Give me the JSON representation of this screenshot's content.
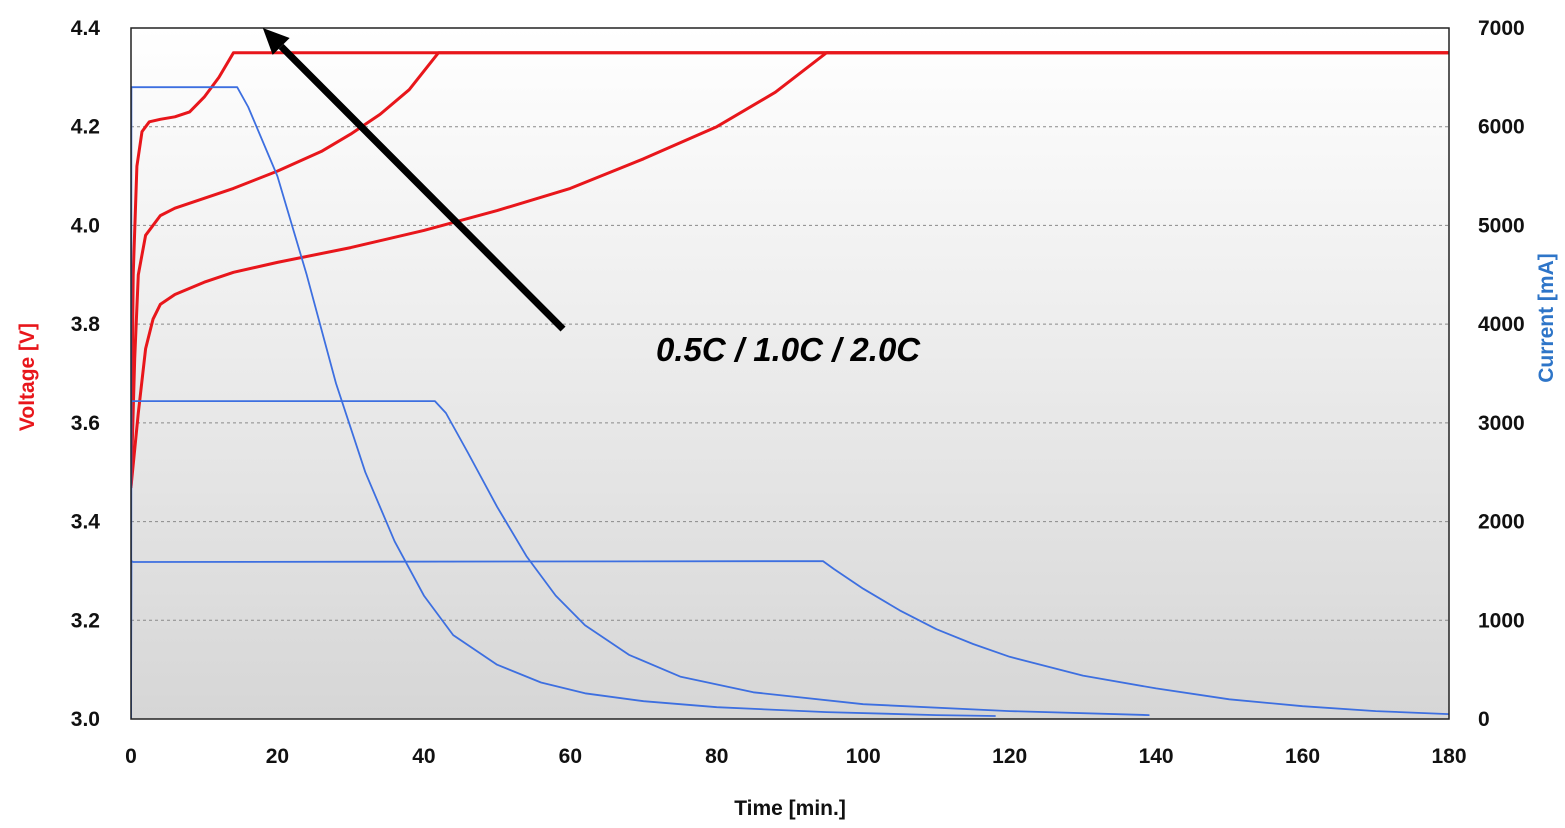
{
  "chart_data": {
    "type": "line",
    "title": "",
    "xlabel": "Time [min.]",
    "ylabel_left": "Voltage [V]",
    "ylabel_right": "Current [mA]",
    "xlim": [
      0,
      180
    ],
    "ylim_left": [
      3.0,
      4.4
    ],
    "ylim_right": [
      0,
      7000
    ],
    "x_ticks": [
      "0",
      "20",
      "40",
      "60",
      "80",
      "100",
      "120",
      "140",
      "160",
      "180"
    ],
    "y_left_ticks": [
      "3.0",
      "3.2",
      "3.4",
      "3.6",
      "3.8",
      "4.0",
      "4.2",
      "4.4"
    ],
    "y_right_ticks": [
      "0",
      "1000",
      "2000",
      "3000",
      "4000",
      "5000",
      "6000",
      "7000"
    ],
    "grid": "horizontal dashed",
    "annotation": {
      "text": "0.5C / 1.0C / 2.0C",
      "arrow_from": [
        59,
        3.79
      ],
      "arrow_to": [
        18,
        4.4
      ]
    },
    "colors": {
      "voltage": "#e8161b",
      "current": "#3d6fe0",
      "left_axis_label": "#e8161b",
      "right_axis_label": "#2e75c8"
    },
    "series": [
      {
        "axis": "left",
        "x": [
          0,
          0.3,
          0.8,
          1.5,
          2.5,
          4,
          6,
          8,
          10,
          12,
          14,
          180
        ],
        "y": [
          3.47,
          3.9,
          4.12,
          4.19,
          4.21,
          4.215,
          4.22,
          4.23,
          4.26,
          4.3,
          4.35,
          4.35
        ]
      },
      {
        "axis": "left",
        "x": [
          0,
          0.5,
          1,
          2,
          4,
          6,
          10,
          14,
          20,
          26,
          30,
          34,
          38,
          42,
          180
        ],
        "y": [
          3.47,
          3.73,
          3.9,
          3.98,
          4.02,
          4.035,
          4.055,
          4.075,
          4.11,
          4.15,
          4.185,
          4.225,
          4.275,
          4.35,
          4.35
        ]
      },
      {
        "axis": "left",
        "x": [
          0,
          1,
          2,
          3,
          4,
          6,
          10,
          14,
          20,
          30,
          40,
          50,
          60,
          70,
          80,
          88,
          95,
          180
        ],
        "y": [
          3.47,
          3.62,
          3.75,
          3.81,
          3.84,
          3.86,
          3.885,
          3.905,
          3.925,
          3.955,
          3.99,
          4.03,
          4.075,
          4.135,
          4.2,
          4.27,
          4.35,
          4.35
        ]
      },
      {
        "axis": "right",
        "x": [
          0,
          0.05,
          0.3,
          14.5,
          16,
          20,
          24,
          28,
          32,
          36,
          40,
          44,
          50,
          56,
          62,
          70,
          80,
          95,
          110,
          118
        ],
        "y": [
          0,
          6400,
          6400,
          6400,
          6200,
          5500,
          4500,
          3400,
          2500,
          1800,
          1250,
          850,
          550,
          370,
          260,
          180,
          120,
          70,
          40,
          30
        ]
      },
      {
        "axis": "right",
        "x": [
          0,
          0.05,
          0.3,
          41.5,
          43,
          46,
          50,
          54,
          58,
          62,
          68,
          75,
          85,
          100,
          120,
          139
        ],
        "y": [
          0,
          3220,
          3220,
          3220,
          3100,
          2700,
          2150,
          1650,
          1250,
          950,
          650,
          430,
          270,
          150,
          80,
          40
        ]
      },
      {
        "axis": "right",
        "x": [
          0,
          0.05,
          0.3,
          94.5,
          96,
          100,
          105,
          110,
          115,
          120,
          130,
          140,
          150,
          160,
          170,
          180
        ],
        "y": [
          0,
          1600,
          1590,
          1600,
          1520,
          1320,
          1100,
          910,
          760,
          630,
          440,
          310,
          200,
          130,
          80,
          50
        ]
      }
    ]
  }
}
